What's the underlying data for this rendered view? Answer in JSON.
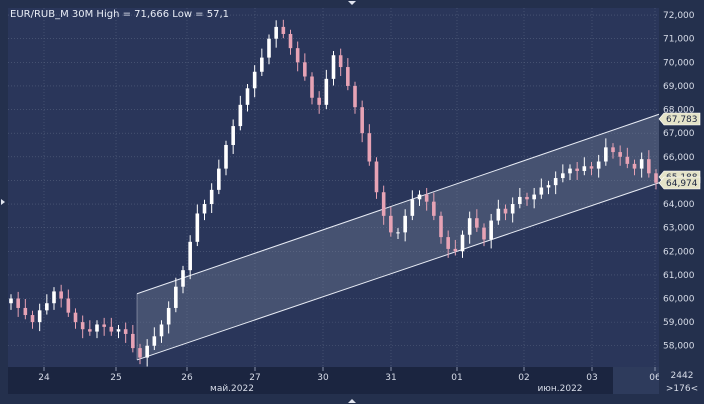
{
  "header": {
    "title": "EUR/RUB_M 30M High = 71,666 Low = 57,1"
  },
  "corner": {
    "bars_label": "2442",
    "scroll_label": ">176<"
  },
  "colors": {
    "background": "#24304d",
    "plot_background": "#2a365a",
    "grid": "#56627f",
    "axis_bg": "#1b2540",
    "bull_candle": "#ffffff",
    "bear_candle": "#e7a3b5",
    "channel_line": "#e8ecf5",
    "channel_fill": "#7c879f",
    "price_marker": "#e4e3c8"
  },
  "chart_data": {
    "type": "candlestick",
    "title": "EUR/RUB_M 30M High = 71,666 Low = 57,1",
    "instrument": "EUR/RUB_M",
    "timeframe": "30M",
    "high": 71.666,
    "low": 57.1,
    "ylim": [
      57.1,
      72.3
    ],
    "y_ticks": [
      "72,000",
      "71,000",
      "70,000",
      "69,000",
      "68,000",
      "67,000",
      "66,000",
      "65,000",
      "64,000",
      "63,000",
      "62,000",
      "61,000",
      "60,000",
      "59,000",
      "58,000"
    ],
    "x_ticks": [
      "24",
      "25",
      "26",
      "27",
      "30",
      "31",
      "01",
      "02",
      "03",
      "06"
    ],
    "x_month_labels": [
      "май.2022",
      "июн.2022"
    ],
    "price_markers": [
      "67,783",
      "65,188",
      "64,974"
    ],
    "grid": true,
    "channel": {
      "upper_start": 60.2,
      "upper_end": 67.8,
      "lower_start": 57.4,
      "lower_end": 64.9,
      "start_day": "25",
      "end_day": "06"
    },
    "close_series": [
      60.0,
      59.6,
      59.3,
      59.0,
      59.5,
      59.8,
      60.3,
      60.0,
      59.4,
      59.0,
      58.7,
      58.6,
      58.9,
      58.8,
      58.6,
      58.7,
      58.5,
      57.9,
      57.5,
      58.0,
      58.4,
      58.9,
      59.6,
      60.5,
      61.2,
      62.4,
      63.6,
      64.0,
      64.6,
      65.5,
      66.5,
      67.3,
      68.2,
      68.9,
      69.6,
      70.2,
      71.0,
      71.5,
      71.2,
      70.6,
      70.0,
      69.4,
      68.5,
      68.2,
      69.3,
      70.3,
      69.8,
      69.0,
      68.1,
      67.0,
      65.8,
      64.5,
      63.5,
      62.8,
      62.8,
      63.5,
      64.2,
      64.4,
      64.1,
      63.5,
      62.6,
      62.1,
      62.0,
      62.7,
      63.4,
      63.0,
      62.5,
      63.3,
      63.8,
      63.6,
      64.0,
      64.3,
      64.2,
      64.4,
      64.7,
      64.8,
      65.1,
      65.3,
      65.5,
      65.4,
      65.6,
      65.5,
      65.8,
      66.4,
      66.2,
      66.0,
      65.7,
      65.5,
      65.9,
      65.3,
      64.9
    ]
  }
}
